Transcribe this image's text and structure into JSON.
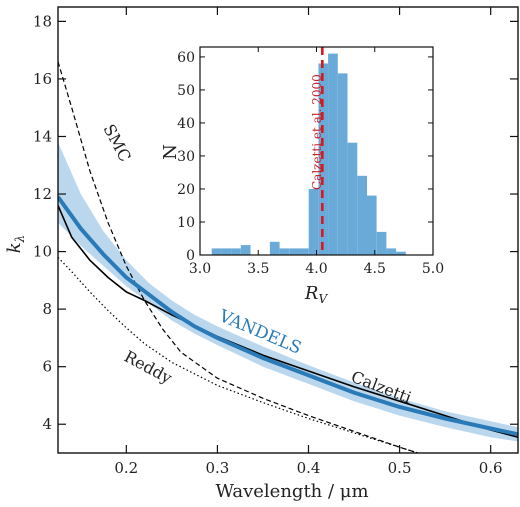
{
  "chart_data": [
    {
      "type": "line",
      "xlabel": "Wavelength / μm",
      "ylabel": "k",
      "ylabel_subscript": "λ",
      "xlim": [
        0.125,
        0.63
      ],
      "ylim": [
        3.0,
        18.5
      ],
      "xticks": [
        0.2,
        0.3,
        0.4,
        0.5,
        0.6
      ],
      "xtick_labels": [
        "0.2",
        "0.3",
        "0.4",
        "0.5",
        "0.6"
      ],
      "yticks": [
        4,
        6,
        8,
        10,
        12,
        14,
        16,
        18
      ],
      "ytick_labels": [
        "4",
        "6",
        "8",
        "10",
        "12",
        "14",
        "16",
        "18"
      ],
      "grid": false,
      "colors": {
        "vandels": "#2a7ab8",
        "vandels_band": "#a9cde9",
        "other": "#000000"
      },
      "labels": {
        "smc": "SMC",
        "reddy": "Reddy",
        "calzetti": "Calzetti",
        "vandels": "VANDELS"
      },
      "series": [
        {
          "name": "VANDELS",
          "style": "solid",
          "x": [
            0.125,
            0.15,
            0.175,
            0.2,
            0.225,
            0.25,
            0.275,
            0.3,
            0.35,
            0.4,
            0.45,
            0.5,
            0.55,
            0.6,
            0.63
          ],
          "y": [
            11.9,
            10.8,
            9.9,
            9.1,
            8.5,
            7.9,
            7.4,
            7.0,
            6.3,
            5.7,
            5.1,
            4.6,
            4.2,
            3.85,
            3.65
          ],
          "y_low": [
            11.0,
            10.2,
            9.5,
            8.8,
            8.2,
            7.6,
            7.15,
            6.75,
            6.0,
            5.4,
            4.8,
            4.3,
            3.9,
            3.55,
            3.4
          ],
          "y_high": [
            13.8,
            12.0,
            10.7,
            9.7,
            8.9,
            8.3,
            7.8,
            7.4,
            6.7,
            6.05,
            5.45,
            4.9,
            4.45,
            4.1,
            3.9
          ]
        },
        {
          "name": "Calzetti",
          "style": "solid",
          "x": [
            0.125,
            0.14,
            0.16,
            0.18,
            0.2,
            0.22,
            0.25,
            0.3,
            0.35,
            0.4,
            0.45,
            0.5,
            0.55,
            0.6,
            0.63
          ],
          "y": [
            11.6,
            10.5,
            9.7,
            9.1,
            8.6,
            8.3,
            7.8,
            7.05,
            6.4,
            5.85,
            5.3,
            4.8,
            4.3,
            3.8,
            3.55
          ]
        },
        {
          "name": "SMC",
          "style": "dashed",
          "x": [
            0.125,
            0.14,
            0.16,
            0.18,
            0.2,
            0.22,
            0.24,
            0.26,
            0.3,
            0.35,
            0.4,
            0.45,
            0.5,
            0.52
          ],
          "y": [
            16.6,
            15.0,
            12.8,
            11.0,
            9.5,
            8.3,
            7.3,
            6.5,
            5.6,
            4.9,
            4.3,
            3.75,
            3.2,
            3.0
          ]
        },
        {
          "name": "Reddy",
          "style": "dotted",
          "x": [
            0.125,
            0.14,
            0.16,
            0.18,
            0.2,
            0.22,
            0.25,
            0.3,
            0.35,
            0.4,
            0.45,
            0.5,
            0.52
          ],
          "y": [
            9.8,
            9.3,
            8.6,
            7.95,
            7.35,
            6.8,
            6.15,
            5.35,
            4.75,
            4.2,
            3.7,
            3.2,
            3.0
          ]
        }
      ]
    },
    {
      "type": "bar",
      "inset": true,
      "xlabel": "R",
      "xlabel_subscript": "V",
      "ylabel": "N",
      "xlim": [
        3.0,
        5.0
      ],
      "ylim": [
        0,
        63
      ],
      "xticks": [
        3.0,
        3.5,
        4.0,
        4.5,
        5.0
      ],
      "xtick_labels": [
        "3.0",
        "3.5",
        "4.0",
        "4.5",
        "5.0"
      ],
      "yticks": [
        0,
        10,
        20,
        30,
        40,
        50,
        60
      ],
      "ytick_labels": [
        "0",
        "10",
        "20",
        "30",
        "40",
        "50",
        "60"
      ],
      "bin_width": 0.0833,
      "bin_starts": [
        3.1,
        3.183,
        3.267,
        3.35,
        3.433,
        3.517,
        3.6,
        3.683,
        3.767,
        3.85,
        3.933,
        4.017,
        4.1,
        4.183,
        4.267,
        4.35,
        4.433,
        4.517,
        4.6,
        4.683
      ],
      "counts": [
        2,
        2,
        2,
        3,
        0,
        0,
        4,
        2,
        2,
        2,
        20,
        58,
        61,
        55,
        34,
        24,
        18,
        7,
        2,
        1
      ],
      "bar_color": "#6aaad9",
      "reference_line": {
        "label": "Calzetti et al. 2000",
        "x": 4.05,
        "color": "#d7191c",
        "style": "dashed"
      }
    }
  ]
}
